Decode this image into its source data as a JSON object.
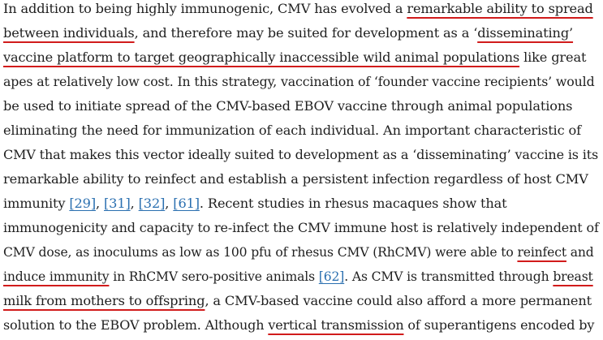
{
  "colors": {
    "text": "#1f1f1f",
    "annotation_underline": "#d11b1b",
    "reference_link": "#2a6fb0",
    "background": "#ffffff"
  },
  "lines": [
    {
      "segments": [
        {
          "text": "In addition to being highly immunogenic, CMV has evolved a ",
          "style": "plain"
        },
        {
          "text": "remarkable ability to spread",
          "style": "underline"
        }
      ]
    },
    {
      "segments": [
        {
          "text": "between individuals",
          "style": "underline"
        },
        {
          "text": ", and therefore may be suited for development as a ‘",
          "style": "plain"
        },
        {
          "text": "disseminating’",
          "style": "underline"
        }
      ]
    },
    {
      "segments": [
        {
          "text": "vaccine platform to target geographically inaccessible wild animal populations",
          "style": "underline"
        },
        {
          "text": " like great",
          "style": "plain"
        }
      ]
    },
    {
      "segments": [
        {
          "text": "apes at relatively low cost. In this strategy, vaccination of ‘founder vaccine recipients’ would",
          "style": "plain"
        }
      ]
    },
    {
      "segments": [
        {
          "text": "be used to initiate spread of the CMV-based EBOV vaccine through animal populations",
          "style": "plain"
        }
      ]
    },
    {
      "segments": [
        {
          "text": "eliminating the need for immunization of each individual. An important characteristic of",
          "style": "plain"
        }
      ]
    },
    {
      "segments": [
        {
          "text": "CMV that makes this vector ideally suited to development as a ‘disseminating’ vaccine is its",
          "style": "plain"
        }
      ]
    },
    {
      "segments": [
        {
          "text": "remarkable ability to reinfect and establish a persistent infection regardless of host CMV",
          "style": "plain"
        }
      ]
    },
    {
      "segments": [
        {
          "text": "immunity ",
          "style": "plain"
        },
        {
          "text": "[29]",
          "style": "ref"
        },
        {
          "text": ", ",
          "style": "plain"
        },
        {
          "text": "[31]",
          "style": "ref"
        },
        {
          "text": ", ",
          "style": "plain"
        },
        {
          "text": "[32]",
          "style": "ref"
        },
        {
          "text": ", ",
          "style": "plain"
        },
        {
          "text": "[61]",
          "style": "ref"
        },
        {
          "text": ". Recent studies in rhesus macaques show that",
          "style": "plain"
        }
      ]
    },
    {
      "segments": [
        {
          "text": "immunogenicity and capacity to re-infect the CMV immune host is relatively independent of",
          "style": "plain"
        }
      ]
    },
    {
      "segments": [
        {
          "text": "CMV dose, as inoculums as low as 100 pfu of rhesus CMV (RhCMV) were able to ",
          "style": "plain"
        },
        {
          "text": "reinfect",
          "style": "underline"
        },
        {
          "text": " and",
          "style": "plain"
        }
      ]
    },
    {
      "segments": [
        {
          "text": "induce immunity",
          "style": "underline"
        },
        {
          "text": " in RhCMV sero-positive animals ",
          "style": "plain"
        },
        {
          "text": "[62]",
          "style": "ref"
        },
        {
          "text": ". As CMV is transmitted through ",
          "style": "plain"
        },
        {
          "text": "breast",
          "style": "underline"
        }
      ]
    },
    {
      "segments": [
        {
          "text": "milk from mothers to offspring",
          "style": "underline"
        },
        {
          "text": ", a CMV-based vaccine could also afford a more permanent",
          "style": "plain"
        }
      ]
    },
    {
      "segments": [
        {
          "text": "solution to the EBOV problem. Although ",
          "style": "plain"
        },
        {
          "text": "vertical transmission",
          "style": "underline"
        },
        {
          "text": " of superantigens encoded by",
          "style": "plain"
        }
      ]
    }
  ]
}
